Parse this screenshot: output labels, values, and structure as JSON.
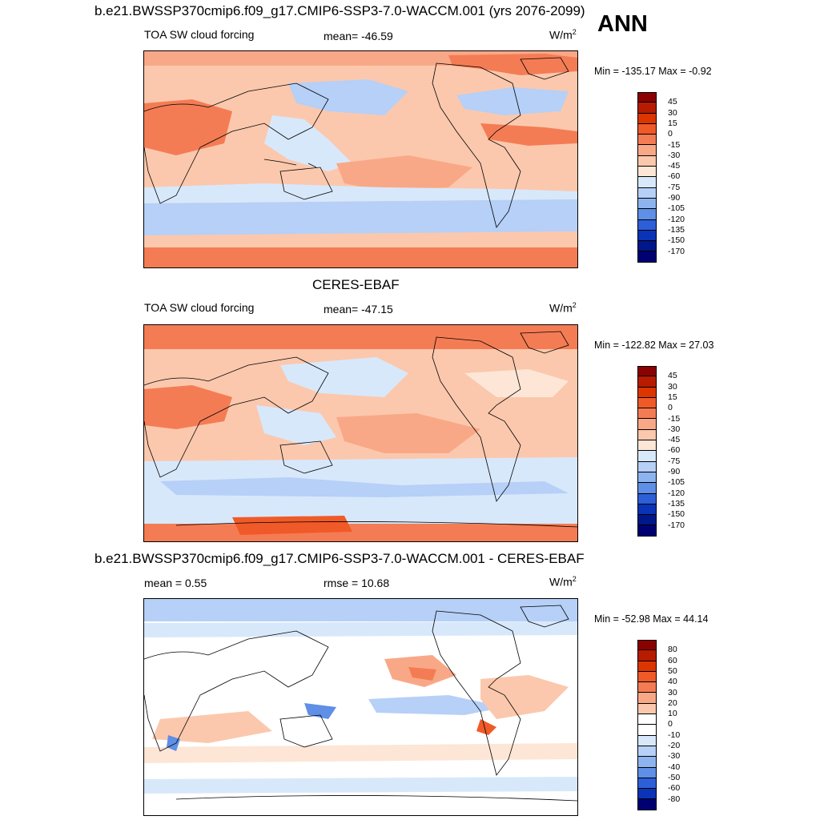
{
  "figure": {
    "season": "ANN",
    "panels": [
      {
        "id": "model",
        "title": "b.e21.BWSSP370cmip6.f09_g17.CMIP6-SSP3-7.0-WACCM.001 (yrs 2076-2099)",
        "variable": "TOA SW cloud forcing",
        "stat_label": "mean= -46.59",
        "units": "W/m",
        "units_sup": "2",
        "minmax": "Min = -135.17 Max =  -0.92",
        "colorbar_ticks": [
          "45",
          "30",
          "15",
          "0",
          "-15",
          "-30",
          "-45",
          "-60",
          "-75",
          "-90",
          "-105",
          "-120",
          "-135",
          "-150",
          "-170"
        ],
        "colorbar_colors": [
          "#8b0000",
          "#b71c00",
          "#dd3500",
          "#f05a28",
          "#f47c54",
          "#f9a887",
          "#fbc8ad",
          "#fde6d6",
          "#d8e8fb",
          "#b6d0f7",
          "#8db4ef",
          "#5f8fe6",
          "#2d5fd8",
          "#0a33b8",
          "#00178a",
          "#000072"
        ]
      },
      {
        "id": "obs",
        "title": "CERES-EBAF",
        "variable": "TOA SW cloud forcing",
        "stat_label": "mean= -47.15",
        "units": "W/m",
        "units_sup": "2",
        "minmax": "Min = -122.82 Max =  27.03",
        "colorbar_ticks": [
          "45",
          "30",
          "15",
          "0",
          "-15",
          "-30",
          "-45",
          "-60",
          "-75",
          "-90",
          "-105",
          "-120",
          "-135",
          "-150",
          "-170"
        ],
        "colorbar_colors": [
          "#8b0000",
          "#b71c00",
          "#dd3500",
          "#f05a28",
          "#f47c54",
          "#f9a887",
          "#fbc8ad",
          "#fde6d6",
          "#d8e8fb",
          "#b6d0f7",
          "#8db4ef",
          "#5f8fe6",
          "#2d5fd8",
          "#0a33b8",
          "#00178a",
          "#000072"
        ]
      },
      {
        "id": "diff",
        "title": "b.e21.BWSSP370cmip6.f09_g17.CMIP6-SSP3-7.0-WACCM.001 - CERES-EBAF",
        "stat_label_left": "mean =   0.55",
        "stat_label": "rmse =  10.68",
        "units": "W/m",
        "units_sup": "2",
        "minmax": "Min = -52.98 Max =  44.14",
        "colorbar_ticks": [
          "80",
          "60",
          "50",
          "40",
          "30",
          "20",
          "10",
          "0",
          "-10",
          "-20",
          "-30",
          "-40",
          "-50",
          "-60",
          "-80"
        ],
        "colorbar_colors": [
          "#8b0000",
          "#b71c00",
          "#dd3500",
          "#f05a28",
          "#f47c54",
          "#f9a887",
          "#fbc8ad",
          "#ffffff",
          "#ffffff",
          "#d8e8fb",
          "#b6d0f7",
          "#8db4ef",
          "#5f8fe6",
          "#2d5fd8",
          "#0a33b8",
          "#000072"
        ]
      }
    ]
  }
}
